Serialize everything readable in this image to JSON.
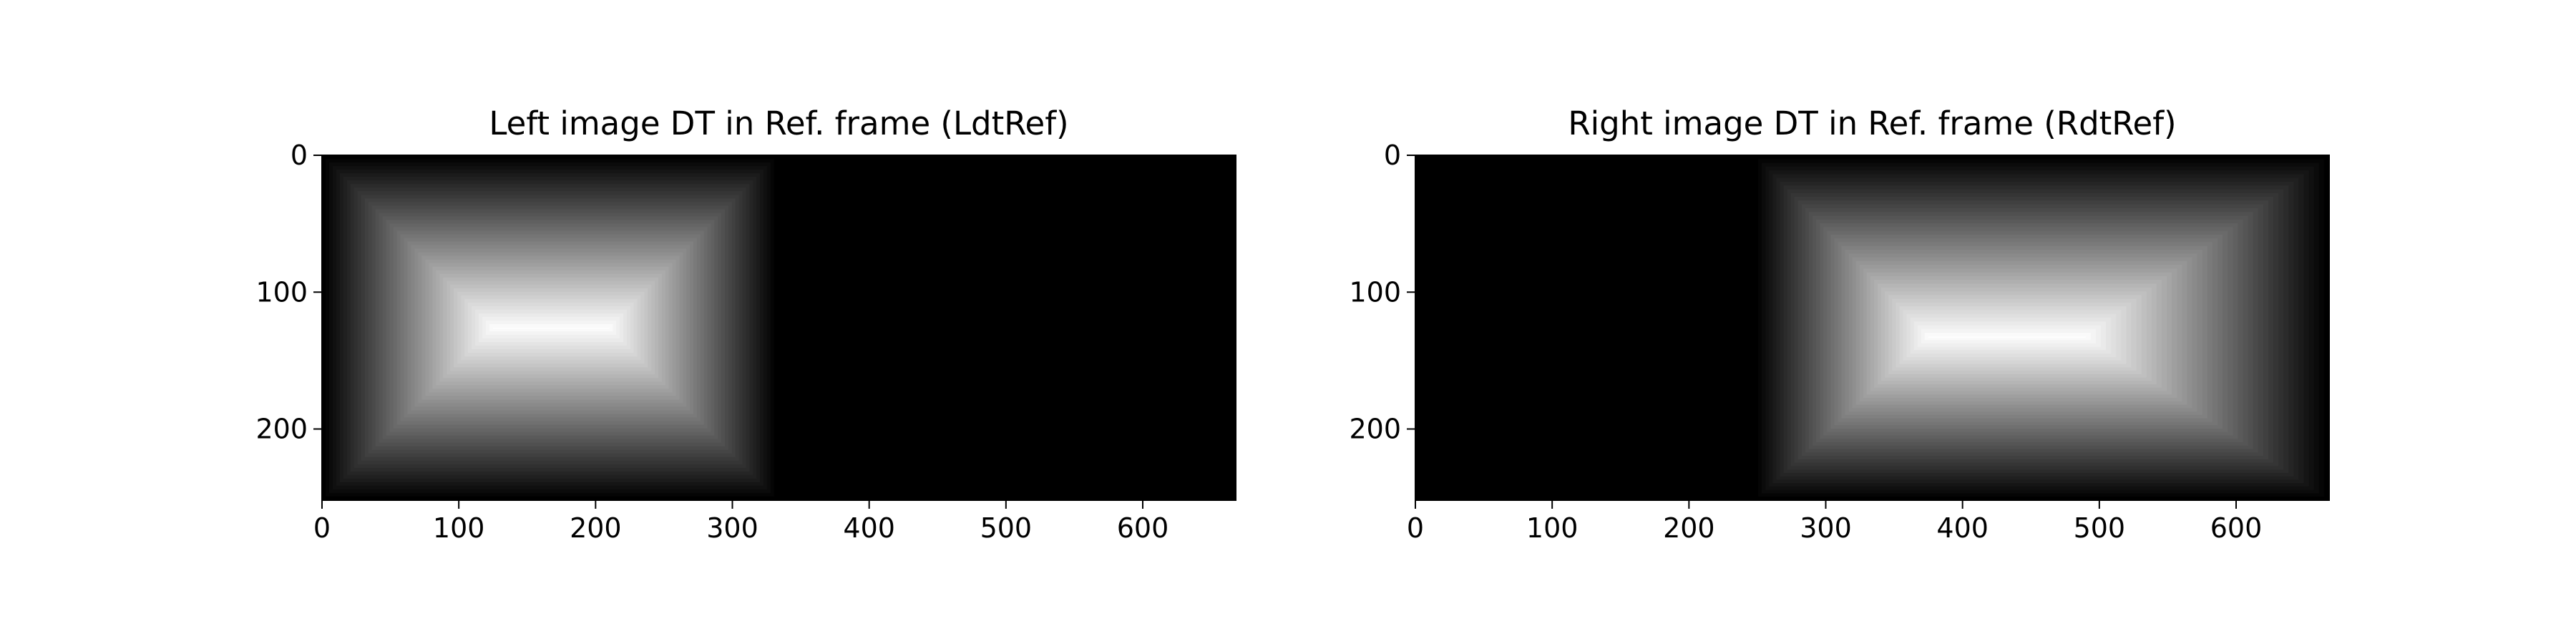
{
  "chart_data": [
    {
      "type": "heatmap",
      "title": "Left image DT in Ref. frame (LdtRef)",
      "xlabel": "",
      "ylabel": "",
      "xlim": [
        0,
        668
      ],
      "ylim": [
        252,
        0
      ],
      "x_ticks": [
        0,
        100,
        200,
        300,
        400,
        500,
        600
      ],
      "y_ticks": [
        0,
        100,
        200
      ],
      "x_tick_labels": [
        "0",
        "100",
        "200",
        "300",
        "400",
        "500",
        "600"
      ],
      "y_tick_labels": [
        "0",
        "100",
        "200"
      ],
      "colormap": "gray",
      "grid": false,
      "nonzero_region": {
        "x": [
          0,
          333
        ],
        "y": [
          0,
          252
        ]
      },
      "peak_segment": {
        "x": [
          125,
          210
        ],
        "y": [
          126,
          126
        ]
      },
      "max_distance": 126
    },
    {
      "type": "heatmap",
      "title": "Right image DT in Ref. frame (RdtRef)",
      "xlabel": "",
      "ylabel": "",
      "xlim": [
        0,
        668
      ],
      "ylim": [
        252,
        0
      ],
      "x_ticks": [
        0,
        100,
        200,
        300,
        400,
        500,
        600
      ],
      "y_ticks": [
        0,
        100,
        200
      ],
      "x_tick_labels": [
        "0",
        "100",
        "200",
        "300",
        "400",
        "500",
        "600"
      ],
      "y_tick_labels": [
        "0",
        "100",
        "200"
      ],
      "colormap": "gray",
      "grid": false,
      "nonzero_region": {
        "x": [
          248,
          668
        ],
        "y": [
          0,
          252
        ]
      },
      "peak_segment": {
        "x": [
          375,
          490
        ],
        "y": [
          130,
          135
        ]
      },
      "max_distance": 126
    }
  ]
}
